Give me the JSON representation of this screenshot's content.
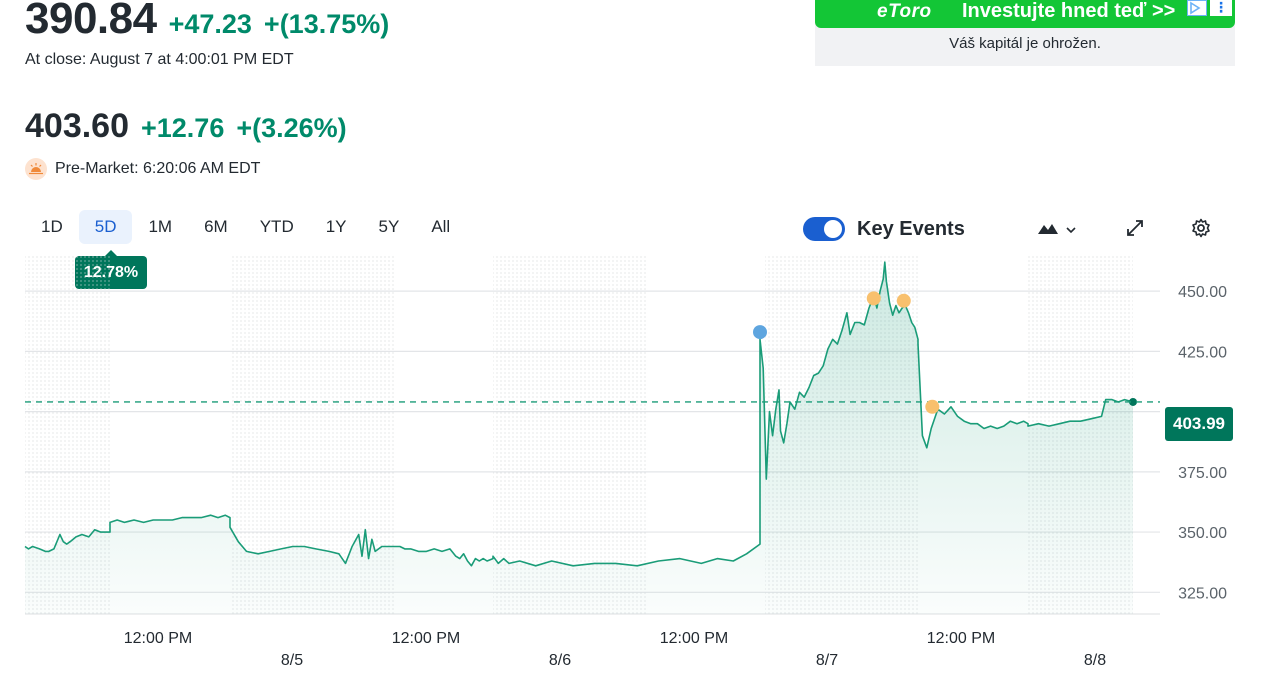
{
  "header": {
    "close_price": "390.84",
    "close_change": "+47.23",
    "close_change_pct": "+(13.75%)",
    "close_label": "At close: August 7 at 4:00:01 PM EDT",
    "pre_price": "403.60",
    "pre_change": "+12.76",
    "pre_change_pct": "+(3.26%)",
    "pre_label": "Pre-Market: 6:20:06 AM EDT",
    "up_color": "#008a6a"
  },
  "ad": {
    "logo": "eToro",
    "cta": "Investujte hned teď >>",
    "sub": "Váš kapitál je ohrožen.",
    "bar_color": "#13c636"
  },
  "toolbar": {
    "ranges": [
      "1D",
      "5D",
      "1M",
      "6M",
      "YTD",
      "1Y",
      "5Y",
      "All"
    ],
    "active_range": "5D",
    "range_change": "12.78%",
    "key_events_label": "Key Events",
    "key_events_on": true,
    "icons": [
      "mountain-chart-icon",
      "chevron-down-icon",
      "expand-icon",
      "gear-icon"
    ]
  },
  "chart_data": {
    "type": "area",
    "color": "#1a9c78",
    "ylim": [
      316,
      465
    ],
    "yticks": [
      325,
      350,
      375,
      400,
      425,
      450
    ],
    "ytick_labels": [
      "325.00",
      "350.00",
      "375.00",
      "",
      "425.00",
      "450.00"
    ],
    "x_labels_time": [
      "12:00 PM",
      "12:00 PM",
      "12:00 PM",
      "12:00 PM"
    ],
    "x_labels_date": [
      "8/5",
      "8/6",
      "8/7",
      "8/8"
    ],
    "last_price_label": "403.99",
    "last_price": 404,
    "days": [
      {
        "label": "8/4",
        "points": [
          [
            0,
            344
          ],
          [
            0.04,
            343
          ],
          [
            0.09,
            344
          ],
          [
            0.17,
            343
          ],
          [
            0.24,
            342
          ],
          [
            0.28,
            342
          ],
          [
            0.34,
            343
          ],
          [
            0.41,
            349
          ],
          [
            0.45,
            346
          ],
          [
            0.49,
            345
          ],
          [
            0.53,
            346
          ],
          [
            0.6,
            348
          ],
          [
            0.67,
            349
          ],
          [
            0.75,
            348
          ],
          [
            0.82,
            351
          ],
          [
            0.89,
            350
          ],
          [
            0.97,
            350
          ],
          [
            1,
            350
          ]
        ]
      },
      {
        "label": "8/5",
        "points": [
          [
            0,
            354
          ],
          [
            0.06,
            355
          ],
          [
            0.12,
            354
          ],
          [
            0.2,
            355
          ],
          [
            0.28,
            354
          ],
          [
            0.36,
            355
          ],
          [
            0.45,
            355
          ],
          [
            0.52,
            355
          ],
          [
            0.6,
            356
          ],
          [
            0.68,
            356
          ],
          [
            0.76,
            356
          ],
          [
            0.84,
            357
          ],
          [
            0.9,
            356
          ],
          [
            0.96,
            357
          ],
          [
            1,
            356
          ]
        ]
      },
      {
        "label": "8/6",
        "points": [
          [
            0,
            352
          ],
          [
            0.05,
            346
          ],
          [
            0.1,
            342
          ],
          [
            0.17,
            341
          ],
          [
            0.24,
            342
          ],
          [
            0.31,
            343
          ],
          [
            0.38,
            344
          ],
          [
            0.45,
            344
          ],
          [
            0.52,
            343
          ],
          [
            0.6,
            342
          ],
          [
            0.66,
            341
          ],
          [
            0.7,
            337
          ],
          [
            0.74,
            344
          ],
          [
            0.78,
            349
          ],
          [
            0.8,
            340
          ],
          [
            0.82,
            351
          ],
          [
            0.84,
            339
          ],
          [
            0.86,
            347
          ],
          [
            0.88,
            342
          ],
          [
            0.92,
            344
          ],
          [
            1,
            344
          ]
        ]
      },
      {
        "label": "8/6b",
        "points": [
          [
            0,
            344
          ],
          [
            0.05,
            344
          ],
          [
            0.1,
            343
          ],
          [
            0.16,
            343
          ],
          [
            0.24,
            342
          ],
          [
            0.32,
            342
          ],
          [
            0.4,
            343
          ],
          [
            0.48,
            342
          ],
          [
            0.56,
            343
          ],
          [
            0.62,
            340
          ],
          [
            0.66,
            339
          ],
          [
            0.7,
            341
          ],
          [
            0.74,
            338
          ],
          [
            0.78,
            336
          ],
          [
            0.82,
            339
          ],
          [
            0.86,
            338
          ],
          [
            0.9,
            339
          ],
          [
            0.94,
            338
          ],
          [
            1,
            339
          ]
        ]
      },
      {
        "label": "8/7",
        "points": [
          [
            0,
            340
          ],
          [
            0.02,
            337
          ],
          [
            0.04,
            339
          ],
          [
            0.06,
            337
          ],
          [
            0.1,
            338
          ],
          [
            0.16,
            336
          ],
          [
            0.22,
            338
          ],
          [
            0.3,
            336
          ],
          [
            0.38,
            337
          ],
          [
            0.46,
            337
          ],
          [
            0.54,
            336
          ],
          [
            0.62,
            338
          ],
          [
            0.7,
            339
          ],
          [
            0.78,
            337
          ],
          [
            0.84,
            339
          ],
          [
            0.9,
            338
          ],
          [
            0.95,
            341
          ],
          [
            1,
            345
          ]
        ]
      },
      {
        "label": "8/7b",
        "points": [
          [
            0,
            430
          ],
          [
            0.02,
            418
          ],
          [
            0.04,
            372
          ],
          [
            0.06,
            400
          ],
          [
            0.08,
            390
          ],
          [
            0.1,
            401
          ],
          [
            0.12,
            409
          ],
          [
            0.13,
            392
          ],
          [
            0.15,
            387
          ],
          [
            0.17,
            395
          ],
          [
            0.19,
            404
          ],
          [
            0.22,
            401
          ],
          [
            0.25,
            408
          ],
          [
            0.28,
            406
          ],
          [
            0.31,
            410
          ],
          [
            0.34,
            415
          ],
          [
            0.37,
            416
          ],
          [
            0.4,
            419
          ],
          [
            0.43,
            426
          ],
          [
            0.46,
            430
          ],
          [
            0.49,
            428
          ],
          [
            0.52,
            434
          ],
          [
            0.55,
            441
          ],
          [
            0.57,
            432
          ],
          [
            0.6,
            437
          ],
          [
            0.63,
            437
          ],
          [
            0.66,
            436
          ],
          [
            0.69,
            443
          ],
          [
            0.72,
            448
          ],
          [
            0.74,
            443
          ],
          [
            0.76,
            450
          ],
          [
            0.78,
            455
          ],
          [
            0.79,
            462
          ],
          [
            0.8,
            454
          ],
          [
            0.82,
            445
          ],
          [
            0.84,
            440
          ],
          [
            0.86,
            444
          ],
          [
            0.88,
            441
          ],
          [
            0.9,
            443
          ],
          [
            0.92,
            444
          ],
          [
            0.94,
            441
          ],
          [
            0.96,
            437
          ],
          [
            0.98,
            435
          ],
          [
            1,
            430
          ]
        ]
      },
      {
        "label": "8/7c",
        "points": [
          [
            0,
            428
          ],
          [
            0.04,
            390
          ],
          [
            0.08,
            385
          ],
          [
            0.12,
            393
          ],
          [
            0.18,
            401
          ],
          [
            0.24,
            399
          ],
          [
            0.3,
            402
          ],
          [
            0.36,
            398
          ],
          [
            0.42,
            396
          ],
          [
            0.48,
            395
          ],
          [
            0.54,
            395
          ],
          [
            0.6,
            393
          ],
          [
            0.66,
            394
          ],
          [
            0.72,
            393
          ],
          [
            0.78,
            394
          ],
          [
            0.84,
            396
          ],
          [
            0.9,
            395
          ],
          [
            0.96,
            396
          ],
          [
            1,
            395
          ]
        ]
      },
      {
        "label": "8/8",
        "points": [
          [
            0,
            394
          ],
          [
            0.1,
            395
          ],
          [
            0.2,
            394
          ],
          [
            0.3,
            395
          ],
          [
            0.4,
            396
          ],
          [
            0.5,
            396
          ],
          [
            0.6,
            397
          ],
          [
            0.7,
            398
          ],
          [
            0.74,
            405
          ],
          [
            0.8,
            405
          ],
          [
            0.86,
            404
          ],
          [
            0.92,
            405
          ],
          [
            1,
            404
          ]
        ]
      }
    ],
    "events": [
      {
        "day": 5,
        "pos": 0,
        "value": 433,
        "kind": "dividend",
        "color": "#5ea5df"
      },
      {
        "day": 5,
        "pos": 0.72,
        "value": 447,
        "kind": "news",
        "color": "#f8c06d"
      },
      {
        "day": 5,
        "pos": 0.91,
        "value": 446,
        "kind": "news",
        "color": "#f8c06d"
      },
      {
        "day": 6,
        "pos": 0.13,
        "value": 402,
        "kind": "news",
        "color": "#f8c06d"
      }
    ]
  }
}
